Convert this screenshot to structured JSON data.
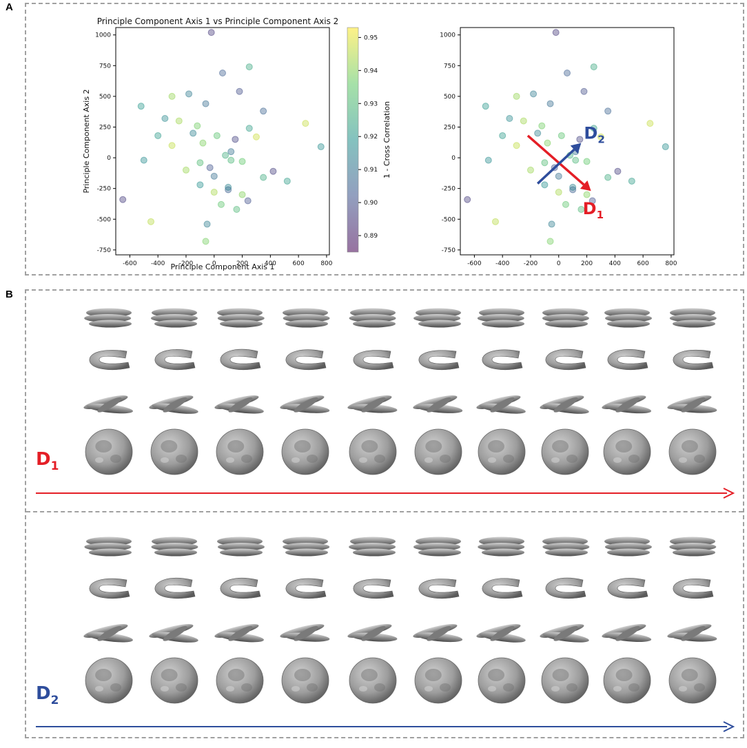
{
  "panels": {
    "a_label": "A",
    "b_label": "B"
  },
  "colors": {
    "red": "#e41e26",
    "blue": "#2e4d9c"
  },
  "icons": {
    "surface": "protein-density-map-icon"
  },
  "chart_data": [
    {
      "id": "scatter-left",
      "type": "scatter",
      "title": "Principle Component Axis 1 vs Principle Component Axis 2",
      "xlabel": "Principle Component Axis 1",
      "ylabel": "Principle Component Axis 2",
      "xlim": [
        -700,
        820
      ],
      "ylim": [
        -790,
        1060
      ],
      "xticks": [
        "-600",
        "-400",
        "-200",
        "0",
        "200",
        "400",
        "600",
        "800"
      ],
      "yticks": [
        "-750",
        "-500",
        "-250",
        "0",
        "250",
        "500",
        "750",
        "1000"
      ],
      "points_x": [
        -20,
        -520,
        -450,
        -350,
        -300,
        -180,
        -120,
        -60,
        20,
        60,
        120,
        180,
        250,
        -650,
        -400,
        -300,
        -500,
        -200,
        -50,
        -60,
        0,
        50,
        100,
        160,
        240,
        350,
        420,
        520,
        650,
        760,
        -250,
        -150,
        -80,
        120,
        200,
        350,
        -100,
        -30,
        80,
        150,
        250,
        300,
        -100,
        0,
        100,
        200
      ],
      "points_y": [
        1020,
        420,
        -520,
        320,
        500,
        520,
        260,
        440,
        180,
        690,
        -20,
        540,
        740,
        -340,
        180,
        100,
        -20,
        -100,
        -540,
        -680,
        -150,
        -380,
        -260,
        -420,
        -350,
        -160,
        -110,
        -190,
        280,
        90,
        300,
        200,
        120,
        50,
        -30,
        380,
        -40,
        -80,
        20,
        150,
        240,
        170,
        -220,
        -280,
        -240,
        -300
      ],
      "colorbar": {
        "label": "1 - Cross Correlation",
        "min": 0.885,
        "max": 0.953,
        "ticks": [
          "0.89",
          "0.90",
          "0.91",
          "0.92",
          "0.93",
          "0.94",
          "0.95"
        ]
      },
      "grid": false
    },
    {
      "id": "scatter-right",
      "type": "scatter",
      "title": "",
      "xlabel": "",
      "ylabel": "",
      "xlim": [
        -700,
        820
      ],
      "ylim": [
        -790,
        1060
      ],
      "xticks": [
        "-600",
        "-400",
        "-200",
        "0",
        "200",
        "400",
        "600",
        "800"
      ],
      "yticks": [
        "-750",
        "-500",
        "-250",
        "0",
        "250",
        "500",
        "750",
        "1000"
      ],
      "points_x": [
        -20,
        -520,
        -450,
        -350,
        -300,
        -180,
        -120,
        -60,
        20,
        60,
        120,
        180,
        250,
        -650,
        -400,
        -300,
        -500,
        -200,
        -50,
        -60,
        0,
        50,
        100,
        160,
        240,
        350,
        420,
        520,
        650,
        760,
        -250,
        -150,
        -80,
        120,
        200,
        350,
        -100,
        -30,
        80,
        150,
        250,
        300,
        -100,
        0,
        100,
        200
      ],
      "points_y": [
        1020,
        420,
        -520,
        320,
        500,
        520,
        260,
        440,
        180,
        690,
        -20,
        540,
        740,
        -340,
        180,
        100,
        -20,
        -100,
        -540,
        -680,
        -150,
        -380,
        -260,
        -420,
        -350,
        -160,
        -110,
        -190,
        280,
        90,
        300,
        200,
        120,
        50,
        -30,
        380,
        -40,
        -80,
        20,
        150,
        240,
        170,
        -220,
        -280,
        -240,
        -300
      ],
      "arrows": [
        {
          "name": "D1",
          "label_main": "D",
          "label_sub": "1",
          "color": "#e41e26",
          "from": [
            -220,
            180
          ],
          "to": [
            230,
            -270
          ]
        },
        {
          "name": "D2",
          "label_main": "D",
          "label_sub": "2",
          "color": "#2e4d9c",
          "from": [
            -150,
            -210
          ],
          "to": [
            160,
            120
          ]
        }
      ],
      "grid": false
    }
  ],
  "panel_b": {
    "groups": [
      {
        "name": "D1",
        "label_main": "D",
        "label_sub": "1",
        "color": "#e41e26",
        "columns": 10,
        "rows": [
          "top-view",
          "side-view",
          "tilted-view",
          "front-view"
        ]
      },
      {
        "name": "D2",
        "label_main": "D",
        "label_sub": "2",
        "color": "#2e4d9c",
        "columns": 10,
        "rows": [
          "top-view",
          "side-view",
          "tilted-view",
          "front-view"
        ]
      }
    ]
  }
}
